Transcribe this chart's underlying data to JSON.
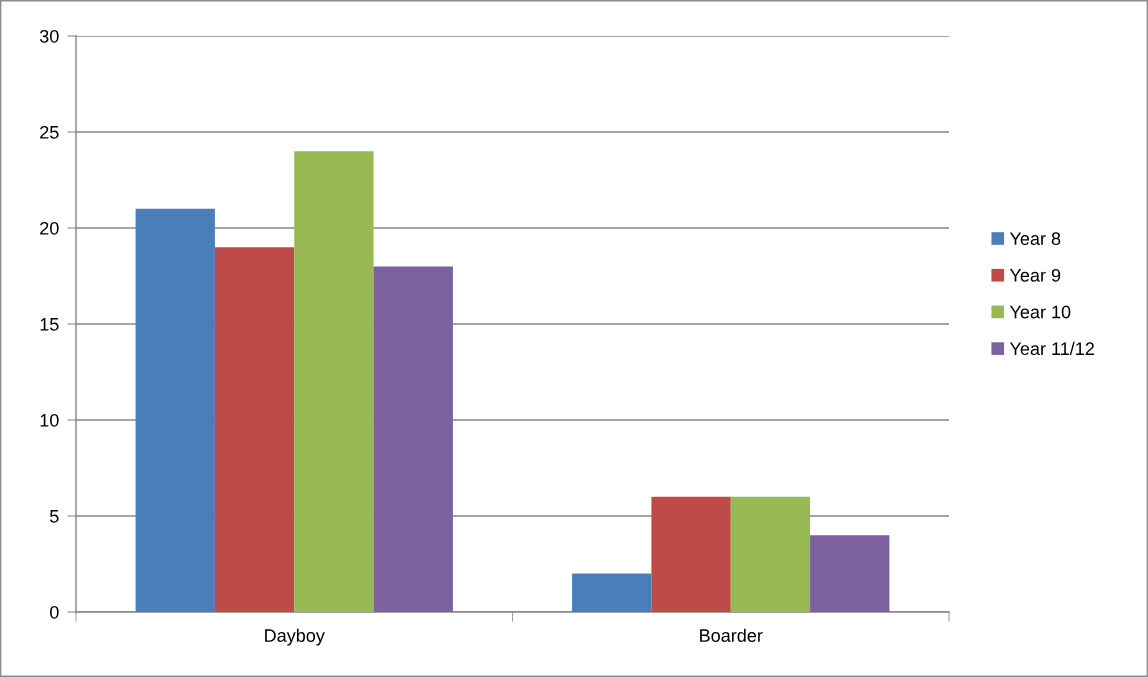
{
  "chart_data": {
    "type": "bar",
    "categories": [
      "Dayboy",
      "Boarder"
    ],
    "series": [
      {
        "name": "Year 8",
        "color": "#4a7ebb",
        "values": [
          21,
          2
        ]
      },
      {
        "name": "Year 9",
        "color": "#be4b48",
        "values": [
          19,
          6
        ]
      },
      {
        "name": "Year 10",
        "color": "#98b954",
        "values": [
          24,
          6
        ]
      },
      {
        "name": "Year 11/12",
        "color": "#7d60a0",
        "values": [
          18,
          4
        ]
      }
    ],
    "ylim": [
      0,
      30
    ],
    "yticks": [
      0,
      5,
      10,
      15,
      20,
      25,
      30
    ],
    "grid": "y",
    "legend": "right"
  }
}
